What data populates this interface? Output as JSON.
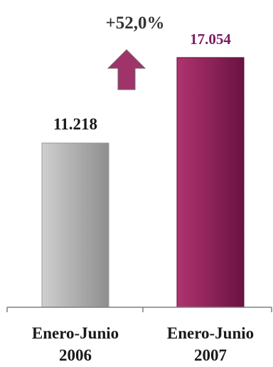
{
  "chart_data": {
    "type": "bar",
    "categories": [
      [
        "Enero-Junio",
        "2006"
      ],
      [
        "Enero-Junio",
        "2007"
      ]
    ],
    "values": [
      11218,
      17054
    ],
    "value_labels": [
      "11.218",
      "17.054"
    ],
    "change_label": "+52,0%",
    "title": "",
    "xlabel": "",
    "ylabel": "",
    "ylim": [
      0,
      20500
    ],
    "grid": false,
    "legend": "none",
    "colors": {
      "bar_2006_light": "#cfcfcf",
      "bar_2006_dark": "#8e8e8e",
      "bar_2007_light": "#b0346f",
      "bar_2007_dark": "#6a1242",
      "label_2006": "#1a1a1a",
      "label_2007": "#7a1b63",
      "change_label": "#333333",
      "arrow": "#a0336a",
      "axis": "#7f7f7f"
    },
    "arrow_icon": "up-arrow-icon"
  }
}
